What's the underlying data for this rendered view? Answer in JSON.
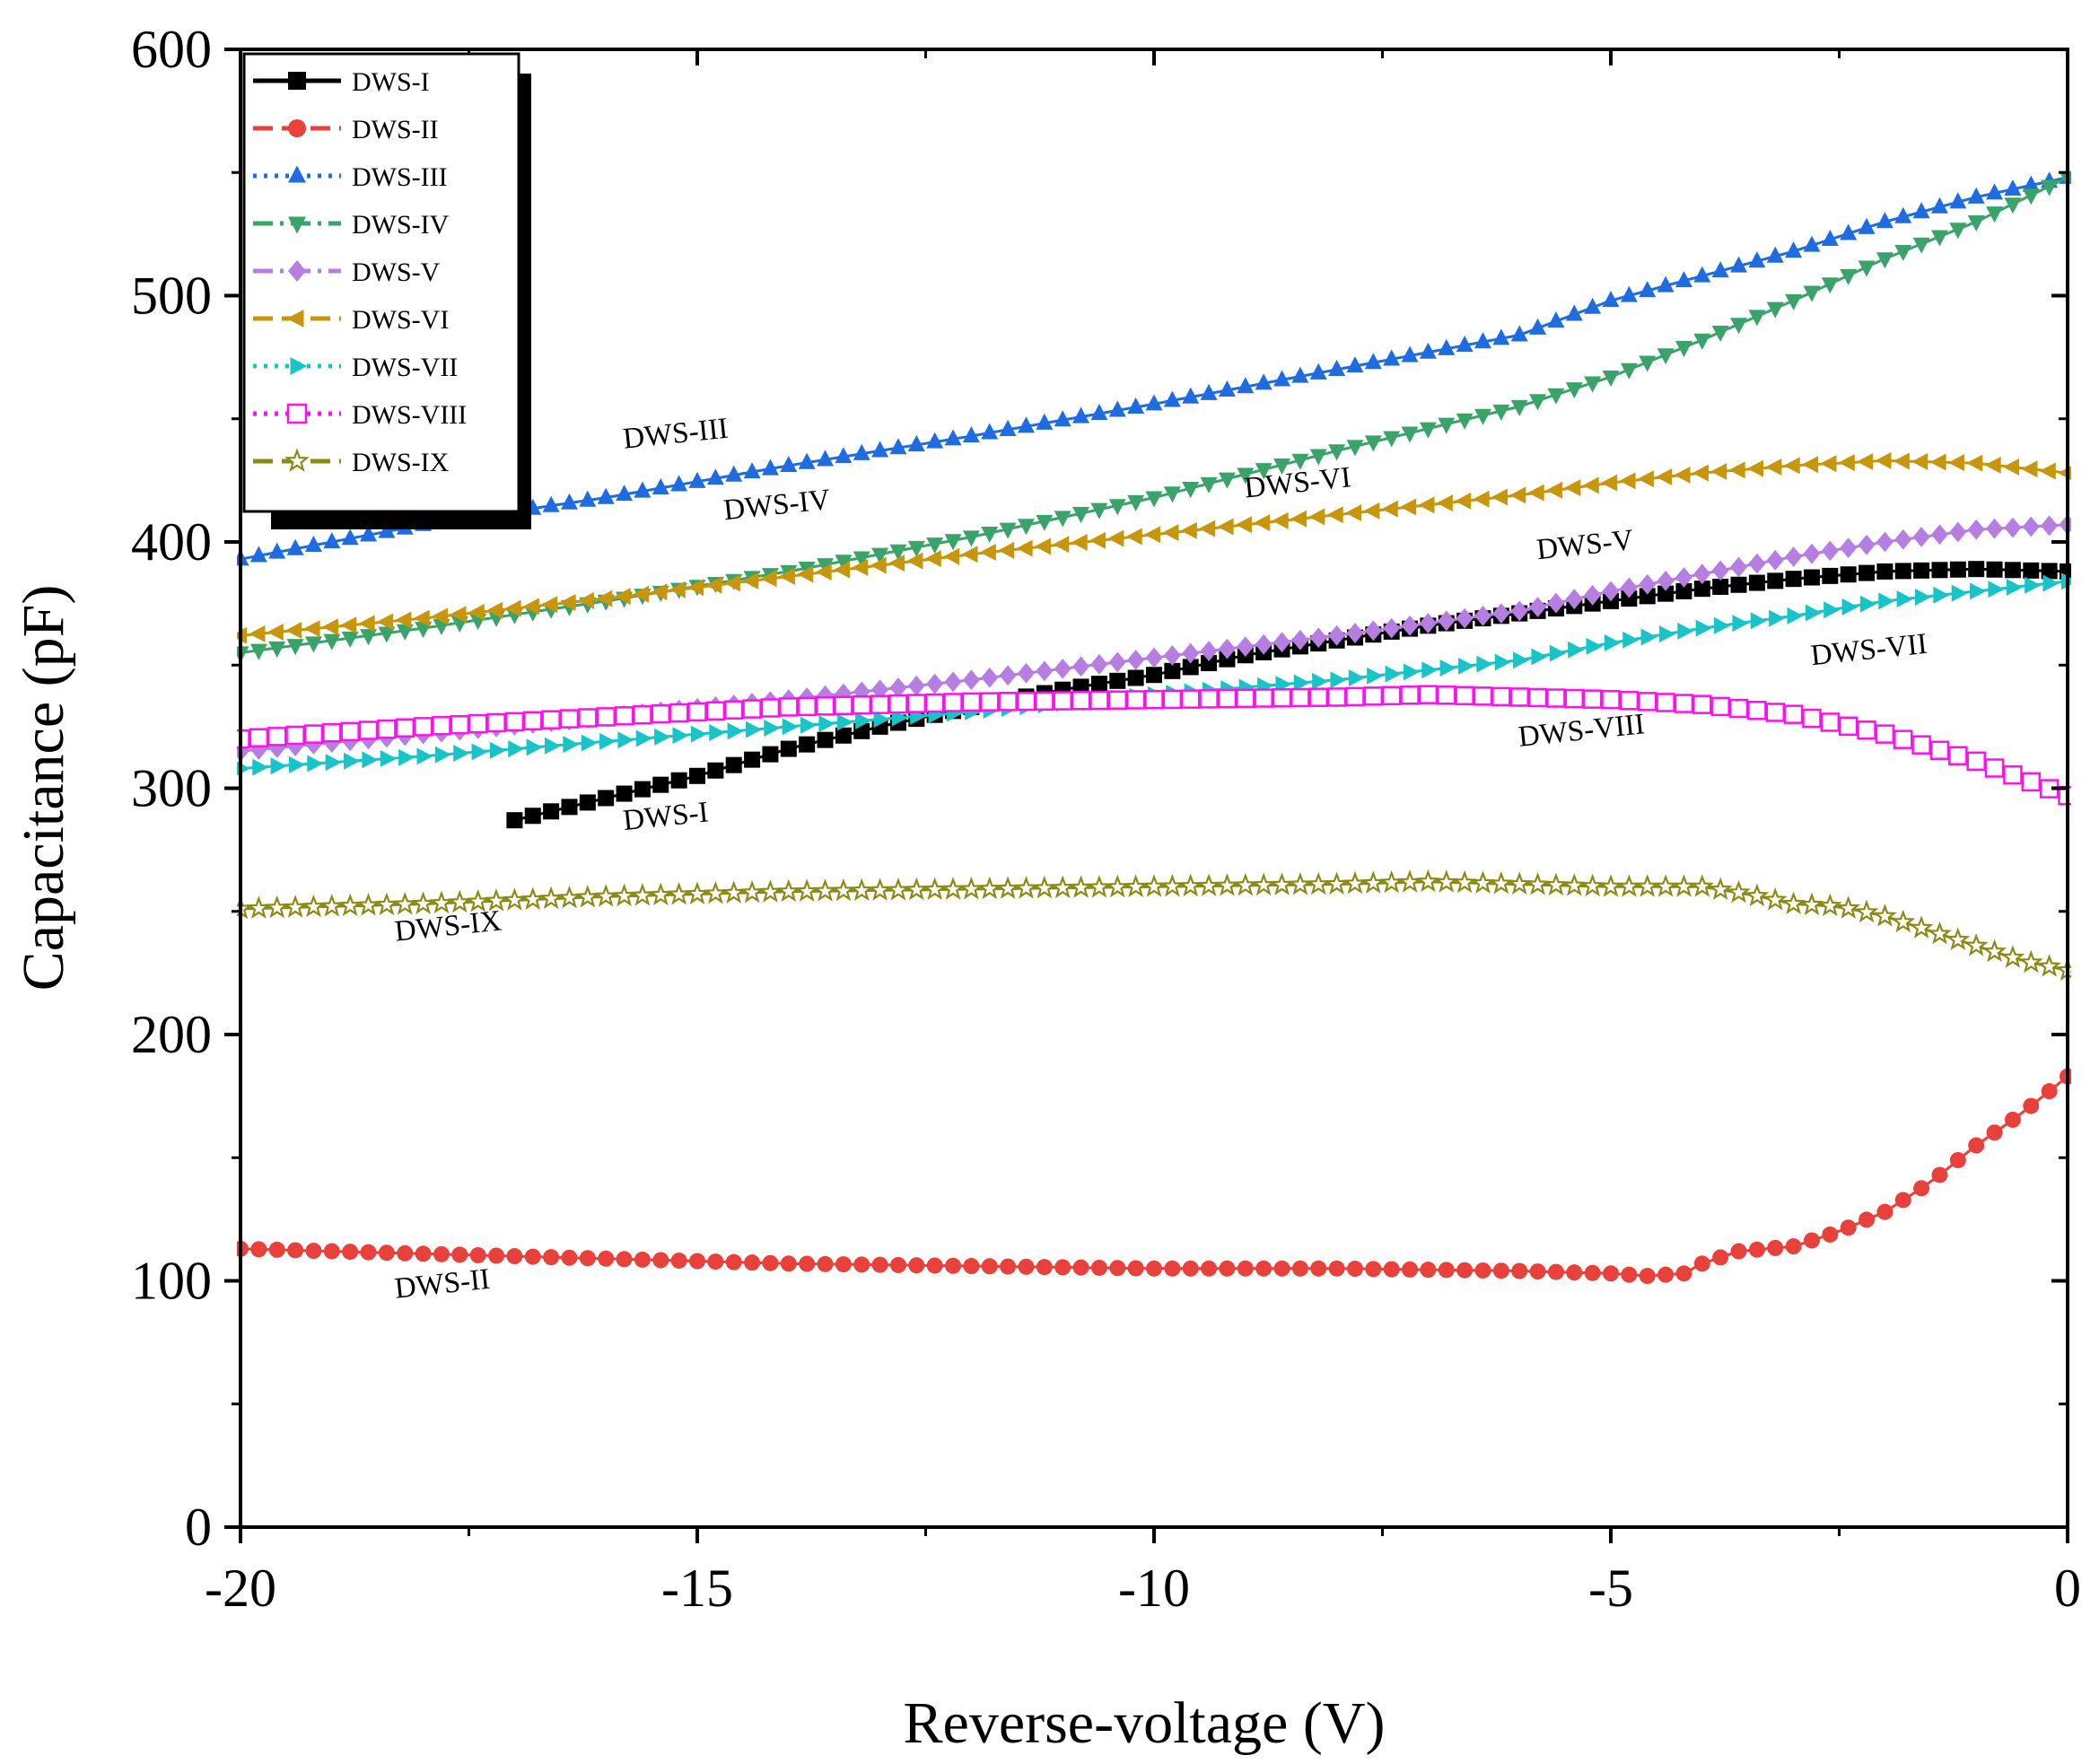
{
  "chart_data": {
    "type": "line",
    "title": "",
    "xlabel": "Reverse-voltage (V)",
    "ylabel": "Capacitance (pF)",
    "xlim": [
      -20,
      0
    ],
    "ylim": [
      0,
      600
    ],
    "xticks": [
      -20,
      -15,
      -10,
      -5,
      0
    ],
    "yticks": [
      0,
      100,
      200,
      300,
      400,
      500,
      600
    ],
    "x_tick_labels": [
      "-20",
      "-15",
      "-10",
      "-5",
      "0"
    ],
    "y_tick_labels": [
      "0",
      "100",
      "200",
      "300",
      "400",
      "500",
      "600"
    ],
    "grid": false,
    "legend_position": "top-left",
    "series": [
      {
        "name": "DWS-I",
        "color": "#000000",
        "marker": "square",
        "dash": "solid",
        "points": [
          [
            -17,
            287
          ],
          [
            -16,
            296
          ],
          [
            -15,
            305
          ],
          [
            -14,
            316
          ],
          [
            -13,
            325
          ],
          [
            -12,
            333
          ],
          [
            -11,
            340
          ],
          [
            -10,
            346
          ],
          [
            -9,
            354
          ],
          [
            -8,
            360
          ],
          [
            -7,
            366
          ],
          [
            -6,
            371
          ],
          [
            -5,
            376
          ],
          [
            -4,
            381
          ],
          [
            -3,
            385
          ],
          [
            -2,
            388
          ],
          [
            -1,
            389
          ],
          [
            0,
            388
          ]
        ]
      },
      {
        "name": "DWS-II",
        "color": "#e8403a",
        "marker": "circle",
        "dash": "dash",
        "points": [
          [
            -20,
            113
          ],
          [
            -18,
            111
          ],
          [
            -16,
            109
          ],
          [
            -14,
            107
          ],
          [
            -12,
            106
          ],
          [
            -10,
            105
          ],
          [
            -8,
            105
          ],
          [
            -6,
            104
          ],
          [
            -5,
            103
          ],
          [
            -4.6,
            102
          ],
          [
            -4.2,
            103
          ],
          [
            -4,
            107
          ],
          [
            -3.6,
            112
          ],
          [
            -3,
            114
          ],
          [
            -2.5,
            120
          ],
          [
            -2,
            128
          ],
          [
            -1.5,
            140
          ],
          [
            -1,
            155
          ],
          [
            -0.5,
            168
          ],
          [
            0,
            183
          ]
        ]
      },
      {
        "name": "DWS-III",
        "color": "#1f6ce0",
        "marker": "triangle-up",
        "dash": "dot",
        "points": [
          [
            -20,
            393
          ],
          [
            -18,
            407
          ],
          [
            -16,
            418
          ],
          [
            -14,
            431
          ],
          [
            -12,
            443
          ],
          [
            -10,
            456
          ],
          [
            -8,
            470
          ],
          [
            -6,
            484
          ],
          [
            -5,
            498
          ],
          [
            -4,
            508
          ],
          [
            -3,
            518
          ],
          [
            -2,
            530
          ],
          [
            -1,
            540
          ],
          [
            0,
            548
          ]
        ]
      },
      {
        "name": "DWS-IV",
        "color": "#3aa36a",
        "marker": "triangle-down",
        "dash": "dashdot",
        "points": [
          [
            -20,
            355
          ],
          [
            -18,
            365
          ],
          [
            -16,
            376
          ],
          [
            -14,
            388
          ],
          [
            -12,
            402
          ],
          [
            -10,
            418
          ],
          [
            -8,
            437
          ],
          [
            -6,
            455
          ],
          [
            -5,
            467
          ],
          [
            -4,
            482
          ],
          [
            -3,
            498
          ],
          [
            -2,
            515
          ],
          [
            -1,
            530
          ],
          [
            0,
            548
          ]
        ]
      },
      {
        "name": "DWS-V",
        "color": "#b57ee0",
        "marker": "diamond",
        "dash": "dashdot",
        "points": [
          [
            -20,
            315
          ],
          [
            -18,
            322
          ],
          [
            -16,
            329
          ],
          [
            -14,
            336
          ],
          [
            -12,
            344
          ],
          [
            -10,
            353
          ],
          [
            -8,
            362
          ],
          [
            -6,
            372
          ],
          [
            -5,
            380
          ],
          [
            -4,
            387
          ],
          [
            -3,
            394
          ],
          [
            -2,
            400
          ],
          [
            -1,
            405
          ],
          [
            0,
            407
          ]
        ]
      },
      {
        "name": "DWS-VI",
        "color": "#c8960c",
        "marker": "triangle-left",
        "dash": "dash",
        "points": [
          [
            -20,
            362
          ],
          [
            -18,
            369
          ],
          [
            -16,
            377
          ],
          [
            -14,
            386
          ],
          [
            -12,
            395
          ],
          [
            -10,
            403
          ],
          [
            -8,
            411
          ],
          [
            -6,
            419
          ],
          [
            -5,
            424
          ],
          [
            -4,
            428
          ],
          [
            -3,
            431
          ],
          [
            -2,
            433
          ],
          [
            -1,
            432
          ],
          [
            0,
            428
          ]
        ]
      },
      {
        "name": "DWS-VII",
        "color": "#18c4c8",
        "marker": "triangle-right",
        "dash": "dot",
        "points": [
          [
            -20,
            308
          ],
          [
            -18,
            313
          ],
          [
            -16,
            319
          ],
          [
            -14,
            325
          ],
          [
            -12,
            331
          ],
          [
            -10,
            338
          ],
          [
            -8,
            344
          ],
          [
            -6,
            352
          ],
          [
            -5,
            359
          ],
          [
            -4,
            365
          ],
          [
            -3,
            370
          ],
          [
            -2,
            376
          ],
          [
            -1,
            380
          ],
          [
            0,
            384
          ]
        ]
      },
      {
        "name": "DWS-VIII",
        "color": "#ff10ee",
        "marker": "square-open",
        "dash": "dot",
        "points": [
          [
            -20,
            320
          ],
          [
            -18,
            325
          ],
          [
            -16,
            329
          ],
          [
            -14,
            333
          ],
          [
            -12,
            335
          ],
          [
            -10,
            336
          ],
          [
            -8,
            337
          ],
          [
            -7,
            338
          ],
          [
            -6,
            337
          ],
          [
            -5,
            336
          ],
          [
            -4,
            334
          ],
          [
            -3,
            330
          ],
          [
            -2,
            322
          ],
          [
            -1,
            311
          ],
          [
            0,
            297
          ]
        ]
      },
      {
        "name": "DWS-IX",
        "color": "#8b8a14",
        "marker": "star-open",
        "dash": "dash",
        "points": [
          [
            -20,
            251
          ],
          [
            -18,
            253
          ],
          [
            -16,
            256
          ],
          [
            -14,
            258
          ],
          [
            -12,
            259
          ],
          [
            -10,
            260
          ],
          [
            -8,
            261
          ],
          [
            -7,
            262
          ],
          [
            -6,
            261
          ],
          [
            -5,
            260
          ],
          [
            -4,
            260
          ],
          [
            -3.5,
            257
          ],
          [
            -3,
            253
          ],
          [
            -2.5,
            252
          ],
          [
            -2,
            248
          ],
          [
            -1.5,
            242
          ],
          [
            -1,
            236
          ],
          [
            -0.5,
            230
          ],
          [
            0,
            226
          ]
        ]
      }
    ],
    "annotations": [
      {
        "text": "DWS-III",
        "x": -15.8,
        "y": 438,
        "angle": -6
      },
      {
        "text": "DWS-IV",
        "x": -14.7,
        "y": 409,
        "angle": -6
      },
      {
        "text": "DWS-VI",
        "x": -9,
        "y": 418,
        "angle": -6
      },
      {
        "text": "DWS-V",
        "x": -5.8,
        "y": 393,
        "angle": -6
      },
      {
        "text": "DWS-VII",
        "x": -2.8,
        "y": 350,
        "angle": -6
      },
      {
        "text": "DWS-VIII",
        "x": -6,
        "y": 317,
        "angle": -6
      },
      {
        "text": "DWS-I",
        "x": -15.8,
        "y": 283,
        "angle": -6
      },
      {
        "text": "DWS-IX",
        "x": -18.3,
        "y": 238,
        "angle": -6
      },
      {
        "text": "DWS-II",
        "x": -18.3,
        "y": 93,
        "angle": -6
      }
    ]
  }
}
